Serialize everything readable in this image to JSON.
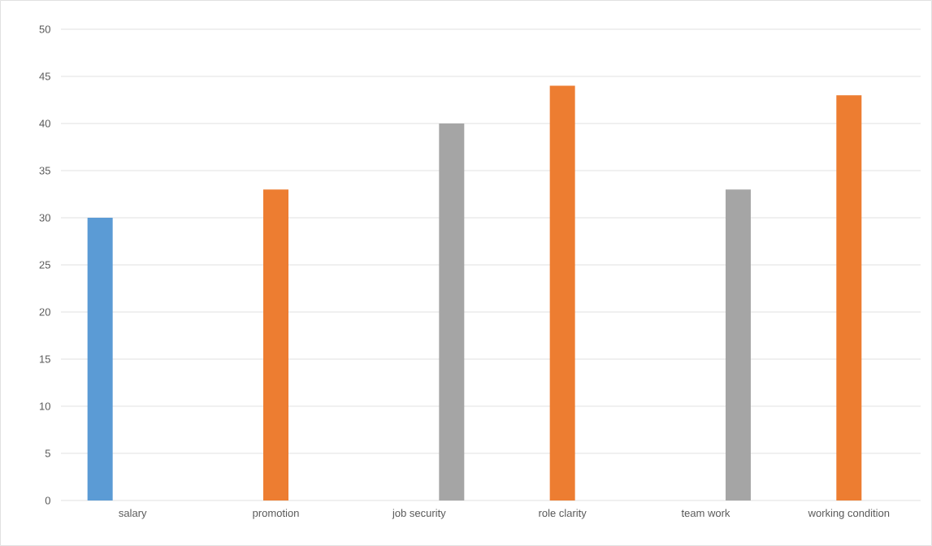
{
  "chart_data": {
    "type": "bar",
    "categories": [
      "salary",
      "promotion",
      "job security",
      "role clarity",
      "team work",
      "working condition"
    ],
    "series": [
      {
        "color": "#5b9bd5",
        "values": [
          30,
          null,
          null,
          null,
          null,
          null
        ]
      },
      {
        "color": "#ed7d31",
        "values": [
          null,
          33,
          null,
          44,
          null,
          43
        ]
      },
      {
        "color": "#a5a5a5",
        "values": [
          null,
          null,
          40,
          null,
          33,
          null
        ]
      }
    ],
    "ylim": [
      0,
      50
    ],
    "yticks": [
      0,
      5,
      10,
      15,
      20,
      25,
      30,
      35,
      40,
      45,
      50
    ],
    "grid": "y"
  }
}
